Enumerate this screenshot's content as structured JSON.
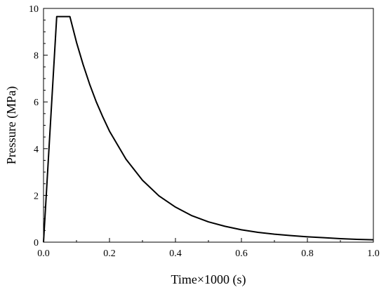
{
  "chart_data": {
    "type": "line",
    "title": "",
    "xlabel": "Time×1000 (s)",
    "ylabel": "Pressure (MPa)",
    "xlim": [
      0.0,
      1.0
    ],
    "ylim": [
      0,
      10
    ],
    "x_ticks": [
      "0.0",
      "0.2",
      "0.4",
      "0.6",
      "0.8",
      "1.0"
    ],
    "y_ticks": [
      "0",
      "2",
      "4",
      "6",
      "8",
      "10"
    ],
    "grid": false,
    "legend": "none",
    "colors": {
      "line": "#000000",
      "axis": "#000000",
      "background": "#ffffff"
    },
    "series": [
      {
        "x": [
          0.0,
          0.04,
          0.08,
          0.1,
          0.12,
          0.14,
          0.16,
          0.18,
          0.2,
          0.25,
          0.3,
          0.35,
          0.4,
          0.45,
          0.5,
          0.55,
          0.6,
          0.65,
          0.7,
          0.75,
          0.8,
          0.85,
          0.9,
          0.95,
          1.0
        ],
        "y": [
          0.0,
          9.65,
          9.65,
          8.55,
          7.6,
          6.75,
          6.0,
          5.35,
          4.75,
          3.55,
          2.65,
          1.98,
          1.5,
          1.13,
          0.87,
          0.68,
          0.53,
          0.42,
          0.34,
          0.28,
          0.23,
          0.19,
          0.15,
          0.12,
          0.1
        ]
      }
    ]
  }
}
